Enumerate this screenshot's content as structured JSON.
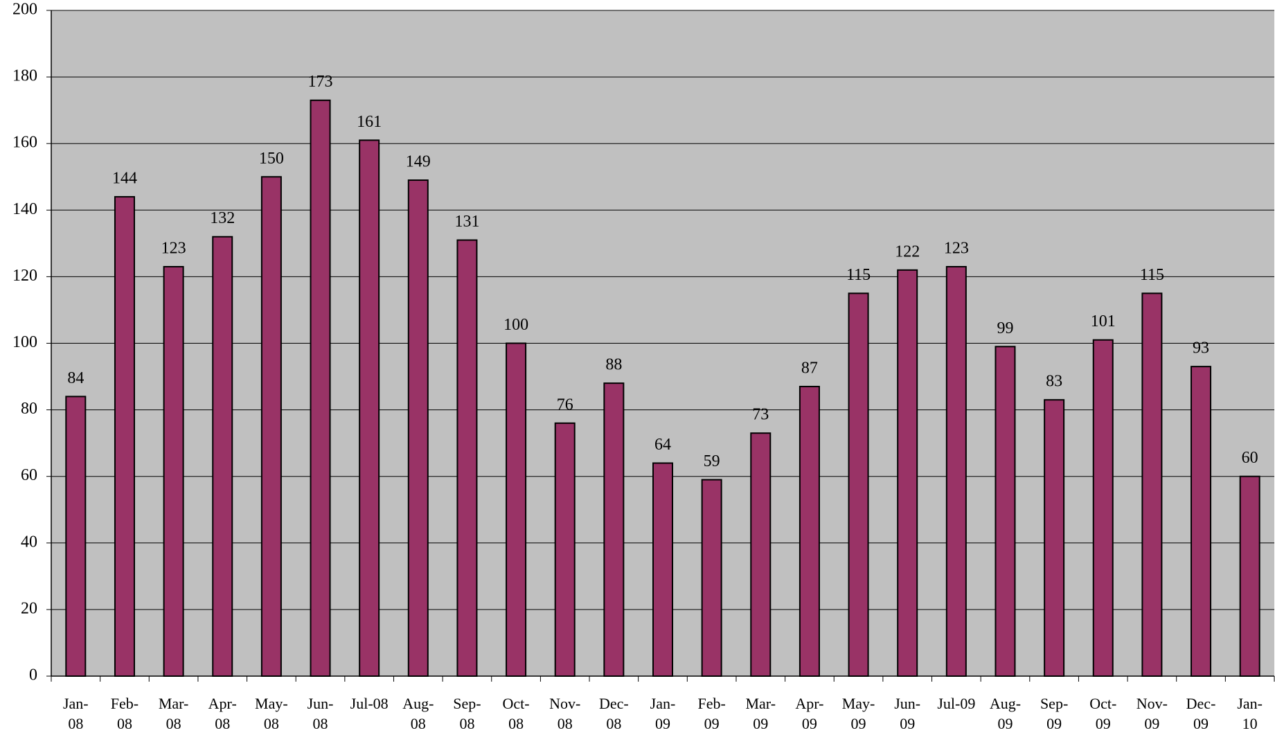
{
  "chart_data": {
    "type": "bar",
    "categories": [
      "Jan-08",
      "Feb-08",
      "Mar-08",
      "Apr-08",
      "May-08",
      "Jun-08",
      "Jul-08",
      "Aug-08",
      "Sep-08",
      "Oct-08",
      "Nov-08",
      "Dec-08",
      "Jan-09",
      "Feb-09",
      "Mar-09",
      "Apr-09",
      "May-09",
      "Jun-09",
      "Jul-09",
      "Aug-09",
      "Sep-09",
      "Oct-09",
      "Nov-09",
      "Dec-09",
      "Jan-10"
    ],
    "values": [
      84,
      144,
      123,
      132,
      150,
      173,
      161,
      149,
      131,
      100,
      76,
      88,
      64,
      59,
      73,
      87,
      115,
      122,
      123,
      99,
      83,
      101,
      115,
      93,
      60
    ],
    "color": "#993366",
    "ylim": [
      0,
      200
    ],
    "yticks": [
      0,
      20,
      40,
      60,
      80,
      100,
      120,
      140,
      160,
      180,
      200
    ],
    "grid": true
  }
}
